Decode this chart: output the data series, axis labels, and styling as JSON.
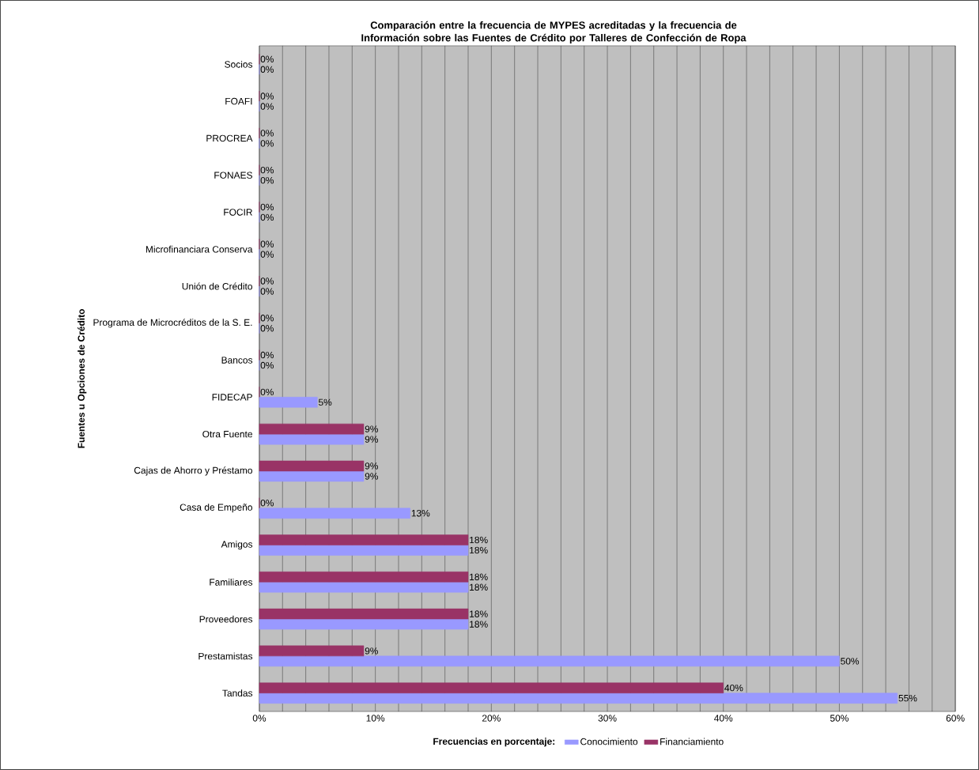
{
  "chart_data": {
    "type": "bar",
    "orientation": "horizontal",
    "title": "Comparación entre la frecuencia de MYPES acreditadas y la frecuencia de Información sobre las Fuentes de Crédito por Talleres de Confección de Ropa",
    "xlabel": "Frecuencias en porcentaje:",
    "ylabel": "Fuentes u Opciones de Crédito",
    "categories": [
      "Socios",
      "FOAFI",
      "PROCREA",
      "FONAES",
      "FOCIR",
      "Microfinanciara Conserva",
      "Unión de Crédito",
      "Programa de Microcréditos de la S. E.",
      "Bancos",
      "FIDECAP",
      "Otra Fuente",
      "Cajas de Ahorro y Préstamo",
      "Casa de Empeño",
      "Amigos",
      "Familiares",
      "Proveedores",
      "Prestamistas",
      "Tandas"
    ],
    "series": [
      {
        "name": "Financiamiento",
        "color": "#993366",
        "values": [
          0,
          0,
          0,
          0,
          0,
          0,
          0,
          0,
          0,
          0,
          9,
          9,
          0,
          18,
          18,
          18,
          9,
          40
        ],
        "value_labels": [
          "0%",
          "0%",
          "0%",
          "0%",
          "0%",
          "0%",
          "0%",
          "0%",
          "0%",
          "0%",
          "9%",
          "9%",
          "0%",
          "18%",
          "18%",
          "18%",
          "9%",
          "40%"
        ]
      },
      {
        "name": "Conocimiento",
        "color": "#9999ff",
        "values": [
          0,
          0,
          0,
          0,
          0,
          0,
          0,
          0,
          0,
          5,
          9,
          9,
          13,
          18,
          18,
          18,
          50,
          55
        ],
        "value_labels": [
          "0%",
          "0%",
          "0%",
          "0%",
          "0%",
          "0%",
          "0%",
          "0%",
          "0%",
          "5%",
          "9%",
          "9%",
          "13%",
          "18%",
          "18%",
          "18%",
          "50%",
          "55%"
        ]
      }
    ],
    "xlim": [
      0,
      60
    ],
    "xticks": [
      {
        "value": 0,
        "label": "0%"
      },
      {
        "value": 2,
        "label": null
      },
      {
        "value": 4,
        "label": null
      },
      {
        "value": 6,
        "label": null
      },
      {
        "value": 8,
        "label": null
      },
      {
        "value": 10,
        "label": "10%"
      },
      {
        "value": 12,
        "label": null
      },
      {
        "value": 14,
        "label": null
      },
      {
        "value": 16,
        "label": null
      },
      {
        "value": 18,
        "label": null
      },
      {
        "value": 20,
        "label": "20%"
      },
      {
        "value": 22,
        "label": null
      },
      {
        "value": 24,
        "label": null
      },
      {
        "value": 26,
        "label": null
      },
      {
        "value": 28,
        "label": null
      },
      {
        "value": 30,
        "label": "30%"
      },
      {
        "value": 32,
        "label": null
      },
      {
        "value": 34,
        "label": null
      },
      {
        "value": 36,
        "label": null
      },
      {
        "value": 38,
        "label": null
      },
      {
        "value": 40,
        "label": "40%"
      },
      {
        "value": 42,
        "label": null
      },
      {
        "value": 44,
        "label": null
      },
      {
        "value": 46,
        "label": null
      },
      {
        "value": 48,
        "label": null
      },
      {
        "value": 50,
        "label": "50%"
      },
      {
        "value": 52,
        "label": null
      },
      {
        "value": 54,
        "label": null
      },
      {
        "value": 56,
        "label": null
      },
      {
        "value": 58,
        "label": null
      },
      {
        "value": 60,
        "label": "60%"
      }
    ],
    "grid": "x",
    "legend": "bottom"
  }
}
